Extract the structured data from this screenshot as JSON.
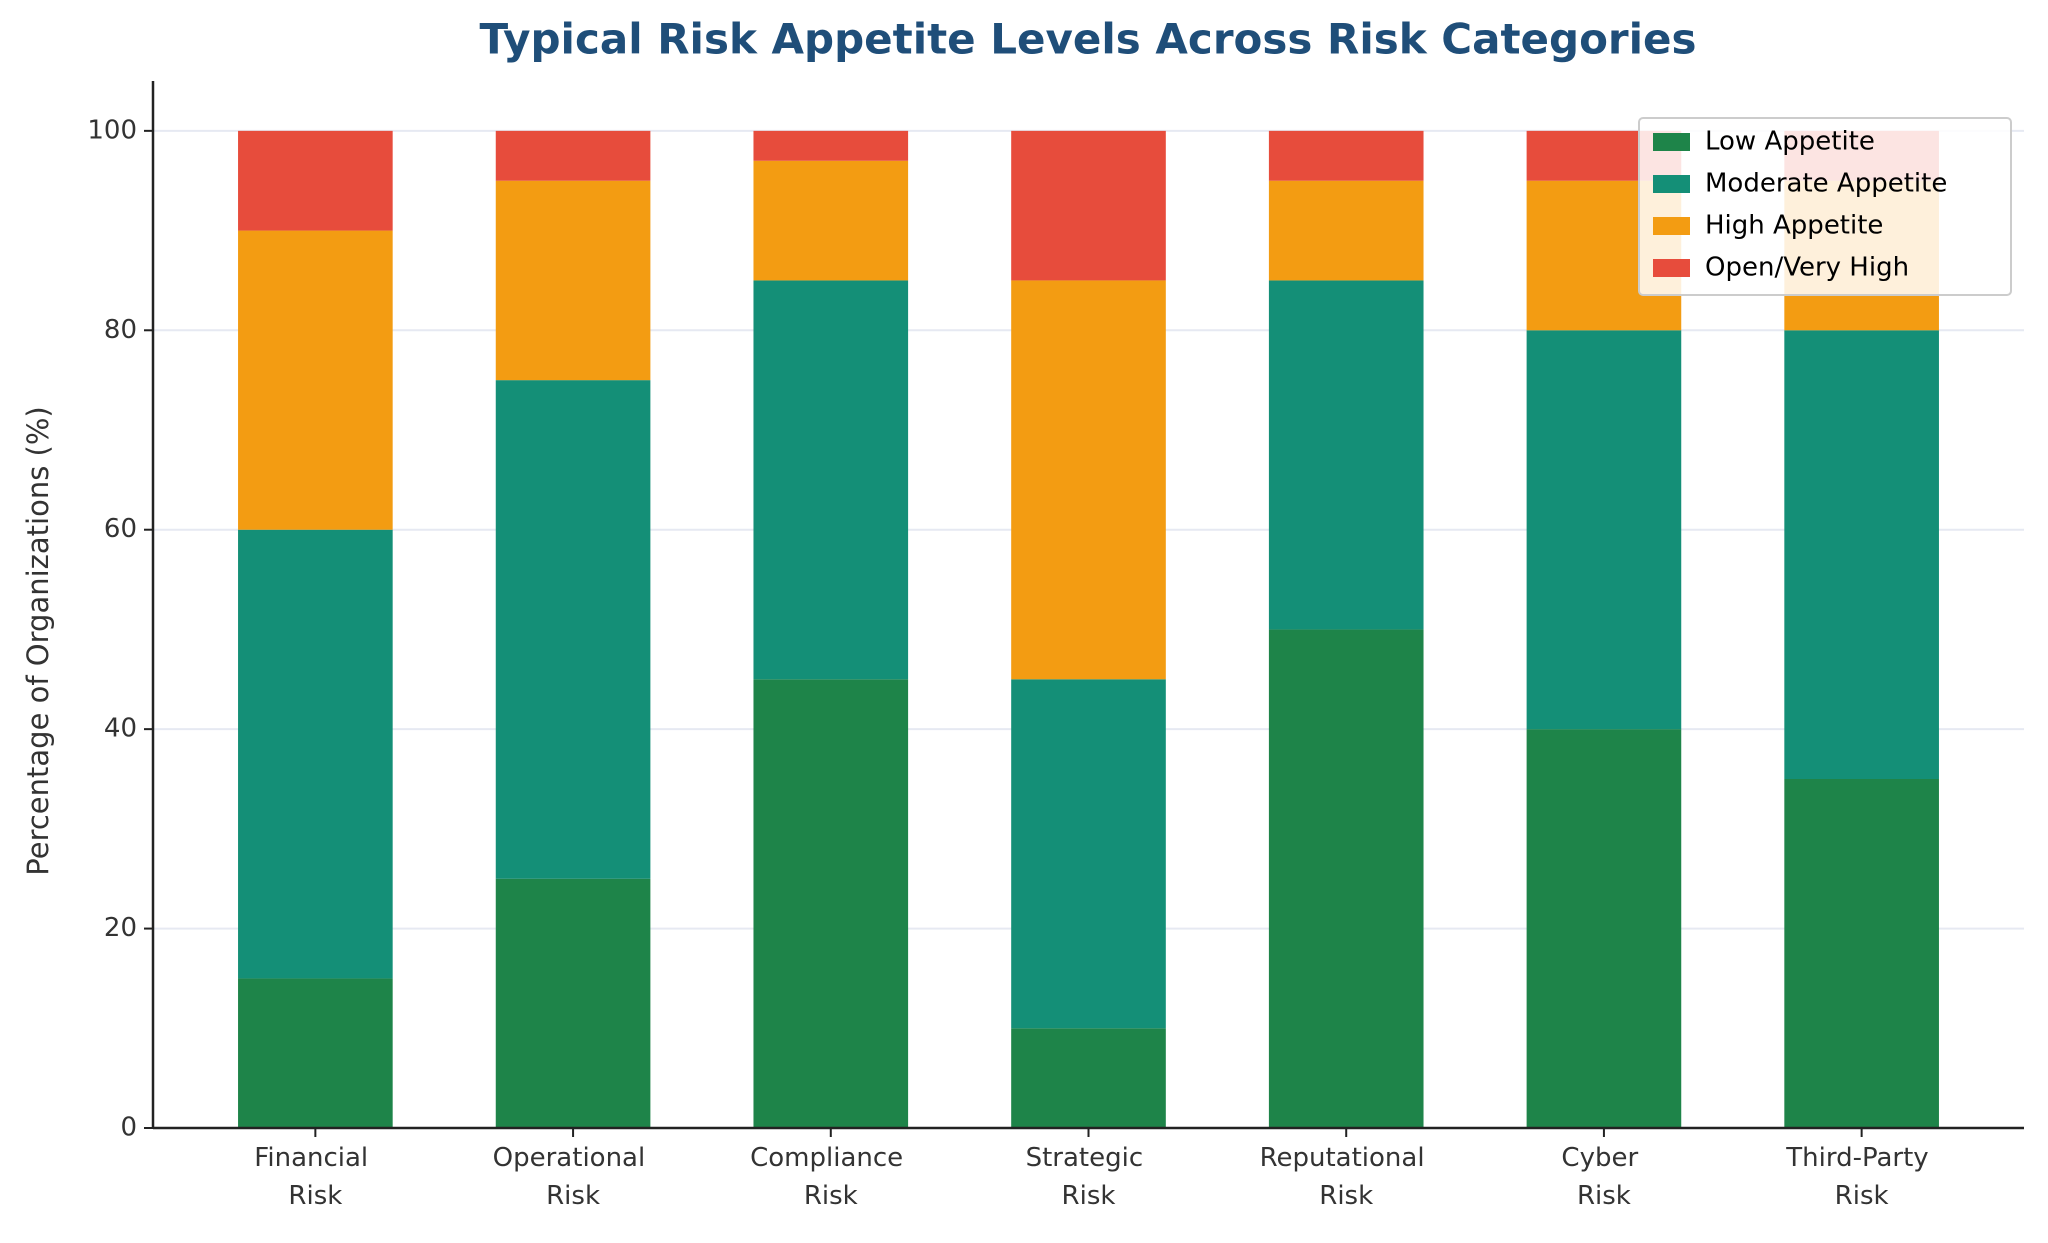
{
  "chart_data": {
    "type": "stacked_bar",
    "title": "Typical Risk Appetite Levels Across Risk Categories",
    "y_label": "Percentage of Organizations (%)",
    "categories": [
      "Financial Risk",
      "Operational Risk",
      "Compliance Risk",
      "Strategic Risk",
      "Reputational Risk",
      "Cyber Risk",
      "Third-Party Risk"
    ],
    "series": [
      {
        "name": "Low Appetite",
        "color": "#1e8449",
        "values": [
          15,
          25,
          45,
          10,
          50,
          40,
          35
        ]
      },
      {
        "name": "Moderate Appetite",
        "color": "#148f77",
        "values": [
          45,
          50,
          40,
          35,
          35,
          40,
          45
        ]
      },
      {
        "name": "High Appetite",
        "color": "#f39c12",
        "values": [
          30,
          20,
          12,
          40,
          10,
          15,
          15
        ]
      },
      {
        "name": "Open/Very High",
        "color": "#e74c3c",
        "values": [
          10,
          5,
          3,
          15,
          5,
          5,
          5
        ]
      }
    ],
    "ylim": [
      0,
      105
    ],
    "yticks": [
      0,
      20,
      40,
      60,
      80,
      100
    ],
    "grid": true,
    "legend": "upper right"
  }
}
